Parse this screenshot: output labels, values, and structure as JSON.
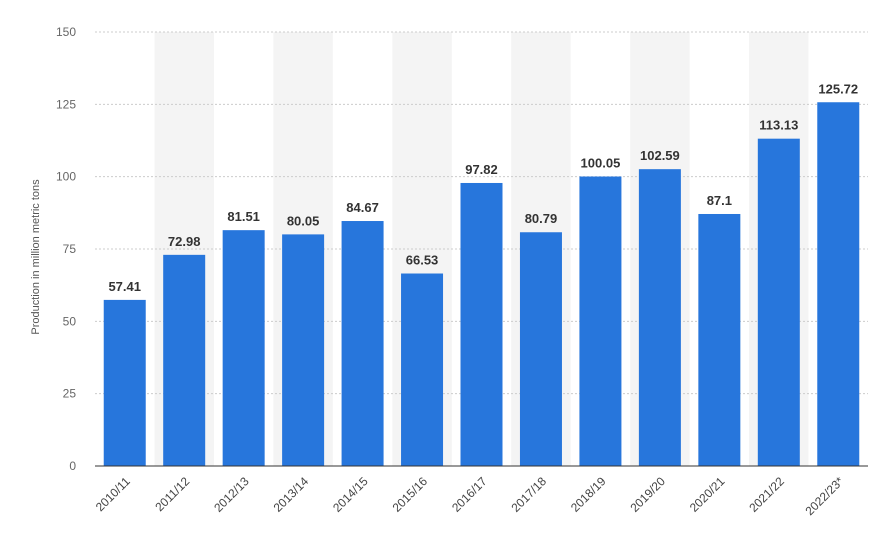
{
  "chart_data": {
    "type": "bar",
    "title": "",
    "xlabel": "",
    "ylabel": "Production in million metric tons",
    "categories": [
      "2010/11",
      "2011/12",
      "2012/13",
      "2013/14",
      "2014/15",
      "2015/16",
      "2016/17",
      "2017/18",
      "2018/19",
      "2019/20",
      "2020/21",
      "2021/22",
      "2022/23*"
    ],
    "values": [
      57.41,
      72.98,
      81.51,
      80.05,
      84.67,
      66.53,
      97.82,
      80.79,
      100.05,
      102.59,
      87.1,
      113.13,
      125.72
    ],
    "value_labels": [
      "57.41",
      "72.98",
      "81.51",
      "80.05",
      "84.67",
      "66.53",
      "97.82",
      "80.79",
      "100.05",
      "102.59",
      "87.1",
      "113.13",
      "125.72"
    ],
    "ylim": [
      0,
      150
    ],
    "yticks": [
      0,
      25,
      50,
      75,
      100,
      125,
      150
    ],
    "grid": true,
    "legend": "none",
    "colors": {
      "bar": "#2776DC",
      "grid": "#cccccc",
      "band": "#f4f4f4",
      "axis": "#333333"
    }
  }
}
